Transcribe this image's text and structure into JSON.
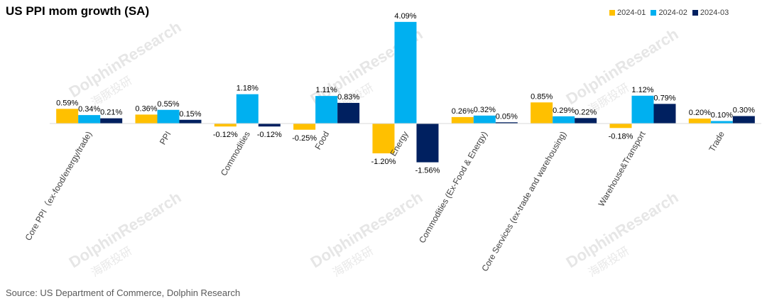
{
  "chart_data": {
    "type": "bar",
    "title": "US PPI mom growth (SA)",
    "source": "Source: US Department of Commerce, Dolphin Research",
    "categories": [
      "Core PPI（ex-food/energy/trade)",
      "PPI",
      "Commodities",
      "Food",
      "Energy",
      "Commodities (Ex-Food & Energy)",
      "Core Services (ex-trade and warehousing)",
      "Warehouse&Transport",
      "Trade"
    ],
    "series": [
      {
        "name": "2024-01",
        "color": "#FFC000",
        "values": [
          0.59,
          0.36,
          -0.12,
          -0.25,
          -1.2,
          0.26,
          0.85,
          -0.18,
          0.2
        ],
        "labels": [
          "0.59%",
          "0.36%",
          "-0.12%",
          "-0.25%",
          "-1.20%",
          "0.26%",
          "0.85%",
          "-0.18%",
          "0.20%"
        ]
      },
      {
        "name": "2024-02",
        "color": "#00B0F0",
        "values": [
          0.34,
          0.55,
          1.18,
          1.11,
          4.09,
          0.32,
          0.29,
          1.12,
          0.1
        ],
        "labels": [
          "0.34%",
          "0.55%",
          "1.18%",
          "1.11%",
          "4.09%",
          "0.32%",
          "0.29%",
          "1.12%",
          "0.10%"
        ]
      },
      {
        "name": "2024-03",
        "color": "#002060",
        "values": [
          0.21,
          0.15,
          -0.12,
          0.83,
          -1.56,
          0.05,
          0.22,
          0.79,
          0.3
        ],
        "labels": [
          "0.21%",
          "0.15%",
          "-0.12%",
          "0.83%",
          "-1.56%",
          "0.05%",
          "0.22%",
          "0.79%",
          "0.30%"
        ]
      }
    ],
    "unit": "%",
    "legend_position": "top-right",
    "grid": false
  },
  "watermark": {
    "brand_cn": "海豚投研",
    "brand_en": "DolphinResearch"
  }
}
